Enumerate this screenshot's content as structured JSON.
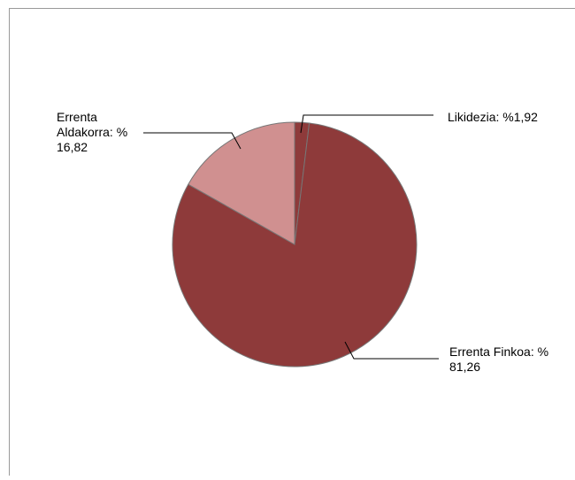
{
  "chart_data": {
    "type": "pie",
    "title": "",
    "slices": [
      {
        "label": "Likidezia",
        "value": 1.92,
        "display_lines": [
          "Likidezia: %1,92"
        ],
        "color": "#8e3a3a"
      },
      {
        "label": "Errenta Finkoa",
        "value": 81.26,
        "display_lines": [
          "Errenta Finkoa: %",
          "81,26"
        ],
        "color": "#8e3a3a"
      },
      {
        "label": "Errenta Aldakorra",
        "value": 16.82,
        "display_lines": [
          "Errenta",
          "Aldakorra: %",
          "16,82"
        ],
        "color": "#d09090"
      }
    ],
    "legend": "none",
    "label_placement": "outside-with-leader-lines"
  },
  "colors": {
    "border": "#999999",
    "slice_edge": "#777777",
    "leader_line": "#000000"
  }
}
